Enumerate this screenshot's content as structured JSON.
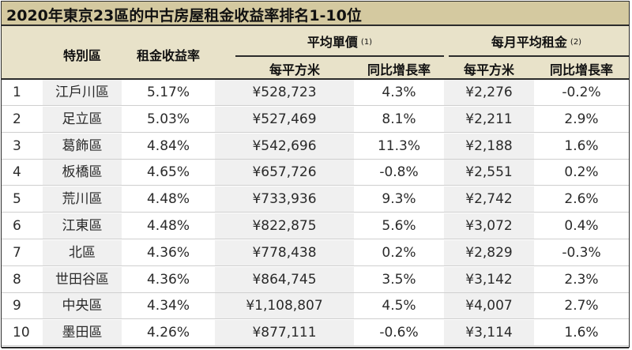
{
  "title": "2020年東京23區的中古房屋租金收益率排名1-10位",
  "header": {
    "district": "特別區",
    "yield": "租金收益率",
    "unit_price_group": "平均單價",
    "unit_price_note": "(1)",
    "rent_group": "每月平均租金",
    "rent_note": "(2)",
    "per_sqm_1": "每平方米",
    "growth_1": "同比增長率",
    "per_sqm_2": "每平方米",
    "growth_2": "同比增長率"
  },
  "rows": [
    {
      "rank": "1",
      "district": "江戶川區",
      "yield": "5.17%",
      "price": "¥528,723",
      "price_growth": "4.3%",
      "rent": "¥2,276",
      "rent_growth": "-0.2%"
    },
    {
      "rank": "2",
      "district": "足立區",
      "yield": "5.03%",
      "price": "¥527,469",
      "price_growth": "8.1%",
      "rent": "¥2,211",
      "rent_growth": "2.9%"
    },
    {
      "rank": "3",
      "district": "葛飾區",
      "yield": "4.84%",
      "price": "¥542,696",
      "price_growth": "11.3%",
      "rent": "¥2,188",
      "rent_growth": "1.6%"
    },
    {
      "rank": "4",
      "district": "板橋區",
      "yield": "4.65%",
      "price": "¥657,726",
      "price_growth": "-0.8%",
      "rent": "¥2,551",
      "rent_growth": "0.2%"
    },
    {
      "rank": "5",
      "district": "荒川區",
      "yield": "4.48%",
      "price": "¥733,936",
      "price_growth": "9.3%",
      "rent": "¥2,742",
      "rent_growth": "2.6%"
    },
    {
      "rank": "6",
      "district": "江東區",
      "yield": "4.48%",
      "price": "¥822,875",
      "price_growth": "5.6%",
      "rent": "¥3,072",
      "rent_growth": "0.4%"
    },
    {
      "rank": "7",
      "district": "北區",
      "yield": "4.36%",
      "price": "¥778,438",
      "price_growth": "0.2%",
      "rent": "¥2,829",
      "rent_growth": "-0.3%"
    },
    {
      "rank": "8",
      "district": "世田谷區",
      "yield": "4.36%",
      "price": "¥864,745",
      "price_growth": "3.5%",
      "rent": "¥3,142",
      "rent_growth": "2.3%"
    },
    {
      "rank": "9",
      "district": "中央區",
      "yield": "4.34%",
      "price": "¥1,108,807",
      "price_growth": "4.5%",
      "rent": "¥4,007",
      "rent_growth": "2.7%"
    },
    {
      "rank": "10",
      "district": "墨田區",
      "yield": "4.26%",
      "price": "¥877,111",
      "price_growth": "-0.6%",
      "rent": "¥3,114",
      "rent_growth": "1.6%"
    }
  ],
  "colors": {
    "title_bg": "#d4c9a0",
    "header_bg": "#e8e2c9",
    "shade_bg": "#f0f0f0",
    "rule": "#2b2b2b"
  }
}
